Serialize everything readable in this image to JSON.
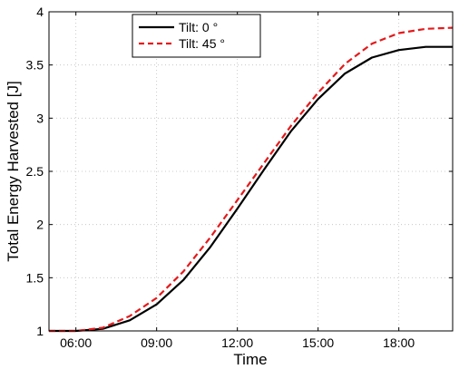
{
  "chart_data": {
    "type": "line",
    "title": "",
    "xlabel": "Time",
    "ylabel": "Total Energy Harvested [J]",
    "x_hours": [
      5,
      6,
      7,
      8,
      9,
      10,
      11,
      12,
      13,
      14,
      15,
      16,
      17,
      18,
      19,
      20
    ],
    "xlim": [
      5,
      20
    ],
    "ylim": [
      1,
      4
    ],
    "x_ticks": [
      {
        "value": 6,
        "label": "06:00"
      },
      {
        "value": 9,
        "label": "09:00"
      },
      {
        "value": 12,
        "label": "12:00"
      },
      {
        "value": 15,
        "label": "15:00"
      },
      {
        "value": 18,
        "label": "18:00"
      }
    ],
    "y_ticks": [
      {
        "value": 1,
        "label": "1"
      },
      {
        "value": 1.5,
        "label": "1.5"
      },
      {
        "value": 2,
        "label": "2"
      },
      {
        "value": 2.5,
        "label": "2.5"
      },
      {
        "value": 3,
        "label": "3"
      },
      {
        "value": 3.5,
        "label": "3.5"
      },
      {
        "value": 4,
        "label": "4"
      }
    ],
    "grid": true,
    "legend_position": "top-center",
    "series": [
      {
        "name": "Tilt: 0 °",
        "color": "#000000",
        "dash": "solid",
        "values": [
          1.0,
          1.0,
          1.02,
          1.1,
          1.25,
          1.48,
          1.79,
          2.15,
          2.52,
          2.88,
          3.18,
          3.42,
          3.57,
          3.64,
          3.67,
          3.67
        ]
      },
      {
        "name": "Tilt: 45 °",
        "color": "#e41a1c",
        "dash": "dashed",
        "values": [
          1.0,
          1.0,
          1.03,
          1.14,
          1.31,
          1.56,
          1.88,
          2.23,
          2.58,
          2.93,
          3.24,
          3.51,
          3.7,
          3.8,
          3.84,
          3.85
        ]
      }
    ]
  }
}
